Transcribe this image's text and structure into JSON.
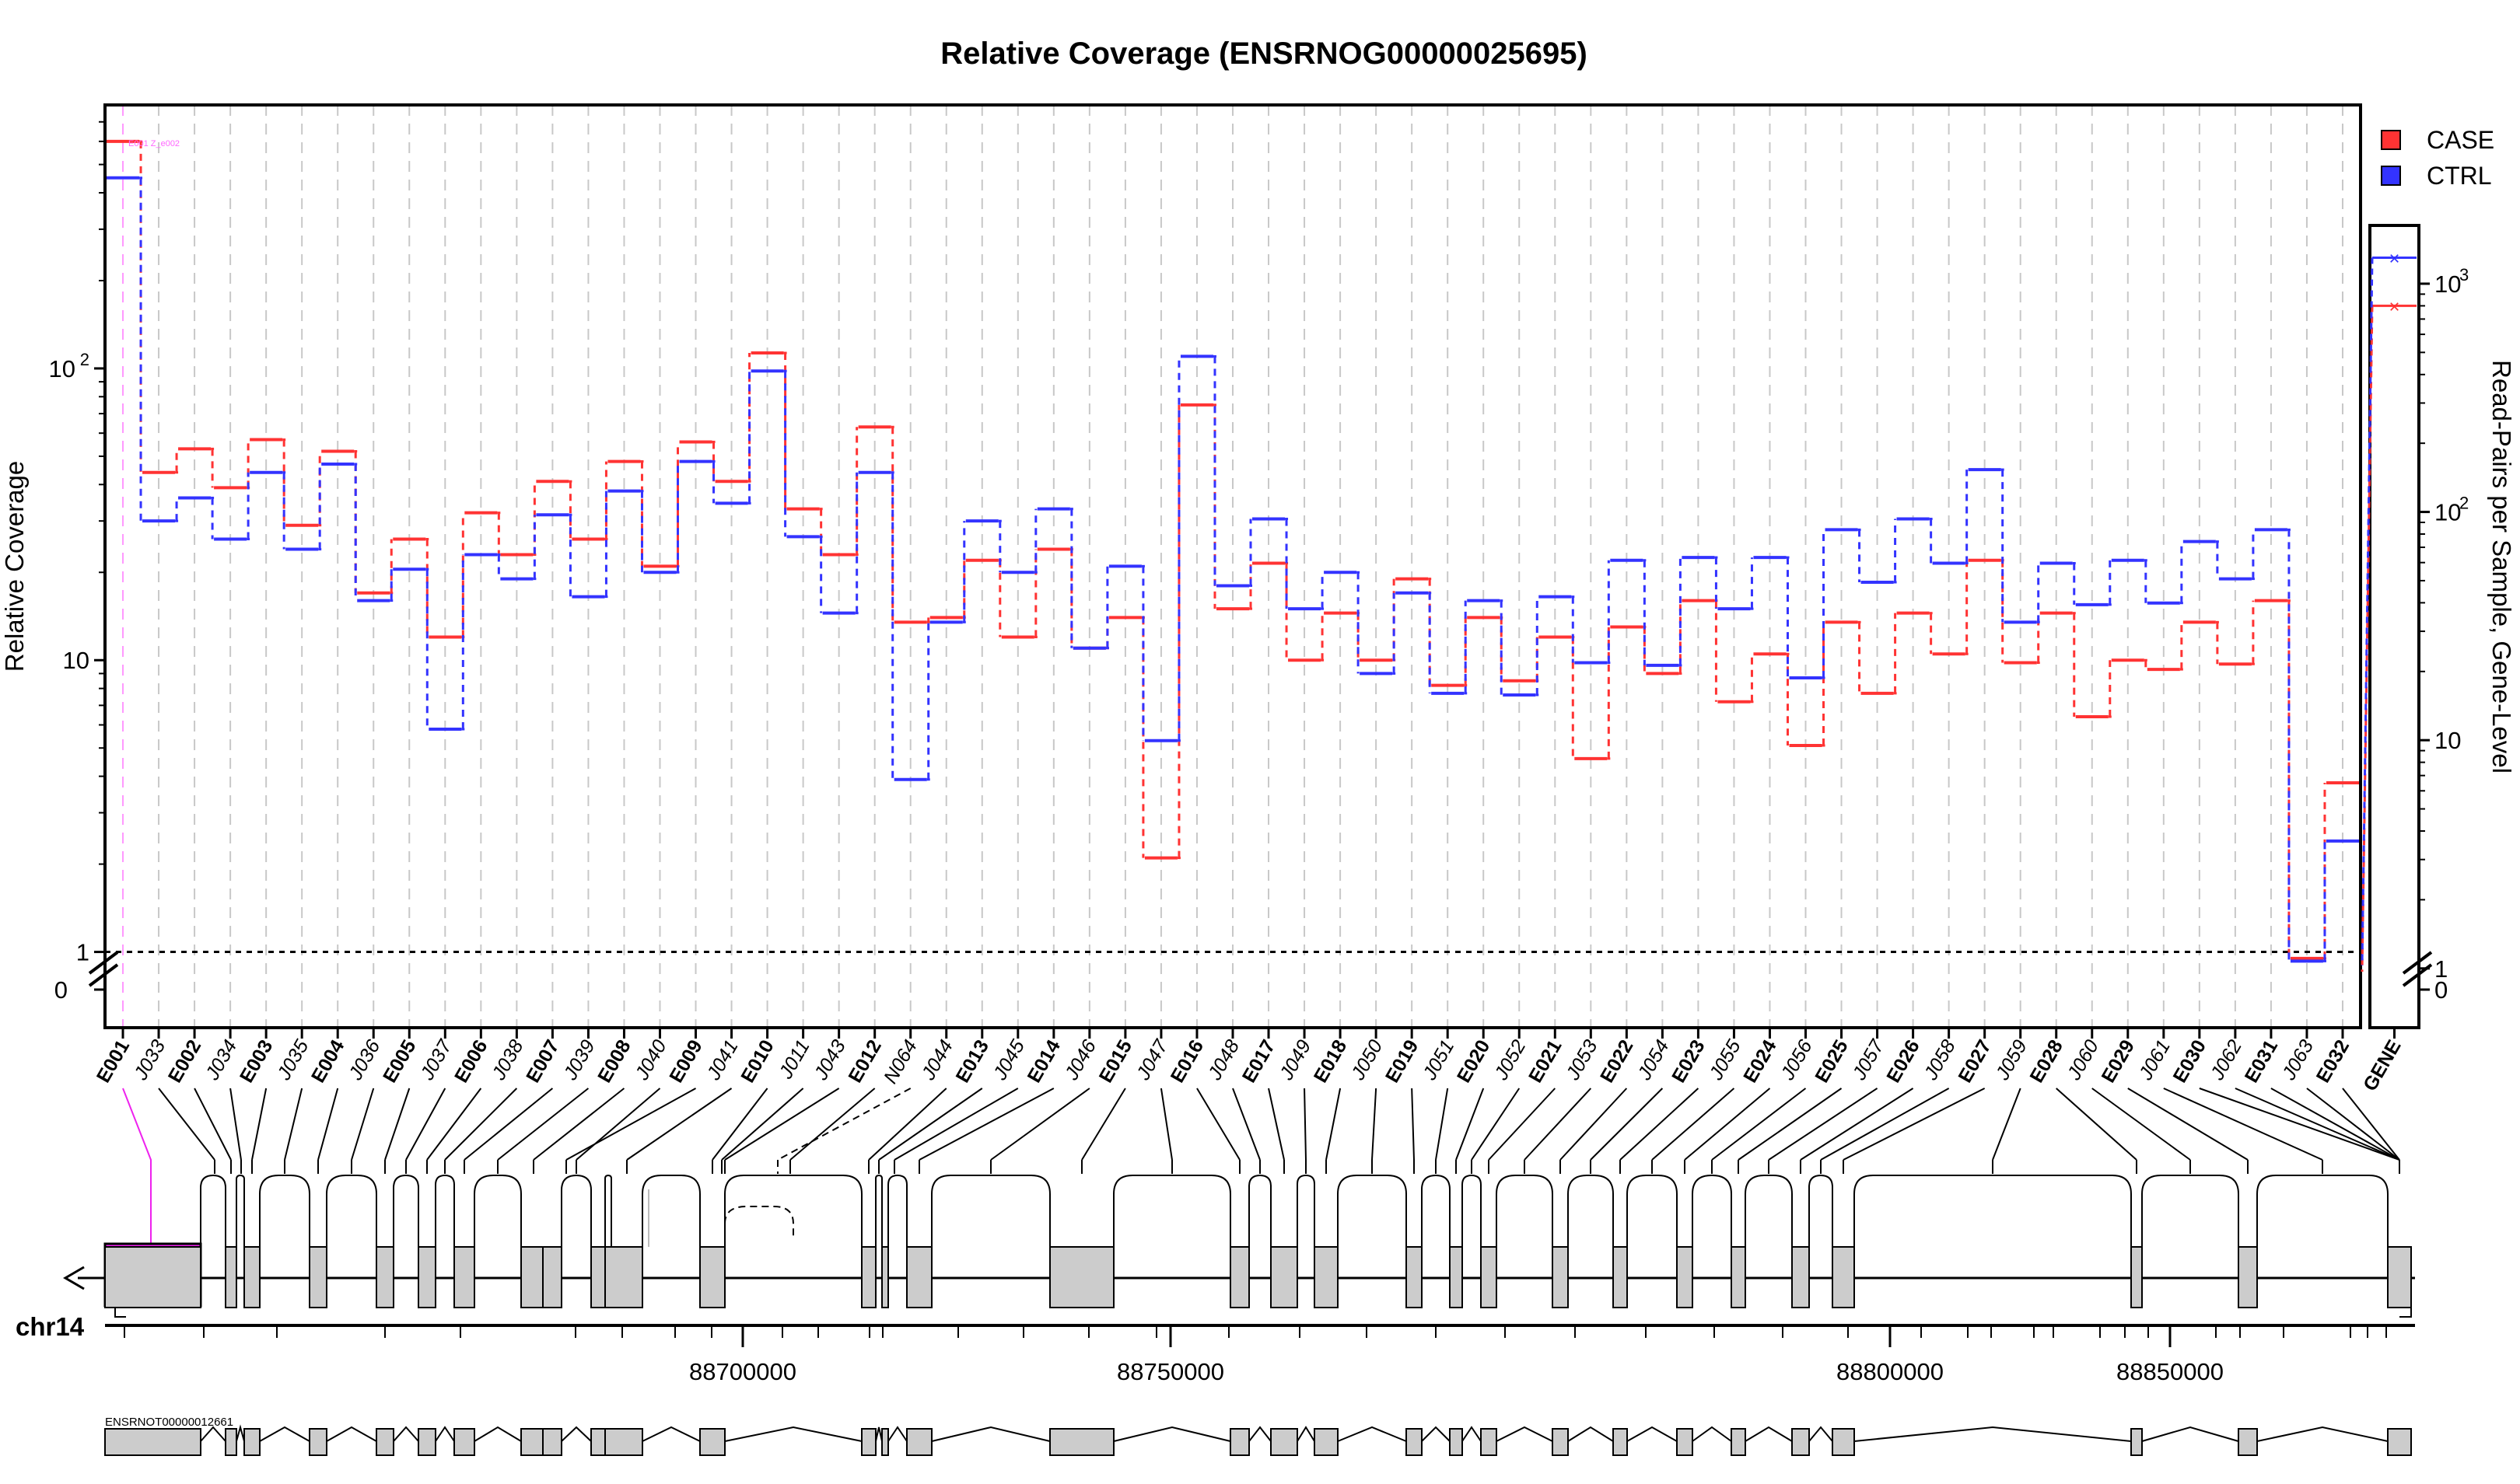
{
  "colors": {
    "case": "#ff3333",
    "ctrl": "#3333ff",
    "exon_fill": "#cccccc",
    "first_exon_fill": "#ee22ee",
    "grid": "#c8c8c8"
  },
  "chart_data": {
    "type": "line",
    "title": "Relative Coverage (ENSRNOG00000025695)",
    "ylabel": "Relative Coverage",
    "ylabel_right": "Read-Pairs per Sample, Gene-Level",
    "y_scale": "log",
    "ylim": [
      0.55,
      800
    ],
    "y_ticks": [
      {
        "value": 1,
        "label": "1"
      },
      {
        "value": 10,
        "label": "10"
      },
      {
        "value": 100,
        "label": "10",
        "sup": "2"
      }
    ],
    "y_zero_label": "0",
    "reference_line": 1,
    "grid": "vertical dashed",
    "legend_position": "top-right",
    "features": [
      "E001",
      "J033",
      "E002",
      "J034",
      "E003",
      "J035",
      "E004",
      "J036",
      "E005",
      "J037",
      "E006",
      "J038",
      "E007",
      "J039",
      "E008",
      "J040",
      "E009",
      "J041",
      "E010",
      "J011",
      "J043",
      "E012",
      "N064",
      "J044",
      "E013",
      "J045",
      "E014",
      "J046",
      "E015",
      "J047",
      "E016",
      "J048",
      "E017",
      "J049",
      "E018",
      "J050",
      "E019",
      "J051",
      "E020",
      "J052",
      "E021",
      "J053",
      "E022",
      "J054",
      "E023",
      "J055",
      "E024",
      "J056",
      "E025",
      "J057",
      "E026",
      "J058",
      "E027",
      "J059",
      "E028",
      "J060",
      "E029",
      "J061",
      "E030",
      "J062",
      "E031",
      "J063",
      "E032"
    ],
    "series": [
      {
        "name": "CASE",
        "values": [
          600,
          44,
          53,
          39,
          57,
          29,
          52,
          17,
          26,
          12,
          32,
          23,
          41,
          26,
          48,
          21,
          56,
          41,
          113,
          33,
          23,
          63,
          13.5,
          14,
          22,
          12,
          24,
          11,
          14,
          2.1,
          75,
          15,
          21.5,
          10,
          14.5,
          10,
          19,
          8.2,
          14,
          8.5,
          12,
          4.6,
          13,
          9,
          16,
          7.2,
          10.5,
          5.1,
          13.5,
          7.7,
          14.5,
          10.5,
          22,
          9.8,
          14.5,
          6.4,
          10,
          9.3,
          13.5,
          9.7,
          16,
          0.95,
          3.8
        ]
      },
      {
        "name": "CTRL",
        "values": [
          450,
          30,
          36,
          26,
          44,
          24,
          47,
          16,
          20.5,
          5.8,
          23,
          19,
          31.5,
          16.5,
          38,
          20,
          48,
          34.5,
          98,
          26.5,
          14.5,
          44,
          3.9,
          13.5,
          30,
          20,
          33,
          11,
          21,
          5.3,
          110,
          18,
          30.5,
          15,
          20,
          9,
          17,
          7.7,
          16,
          7.6,
          16.5,
          9.8,
          22,
          9.6,
          22.5,
          15,
          22.5,
          8.7,
          28,
          18.5,
          30.5,
          21.5,
          45,
          13.5,
          21.5,
          15.5,
          22,
          15.7,
          25.5,
          19,
          28,
          0.93,
          2.4
        ]
      }
    ],
    "gene_level": {
      "label": "GENE",
      "ylim": [
        0.55,
        1800
      ],
      "y_ticks": [
        {
          "value": 1,
          "label": "1"
        },
        {
          "value": 10,
          "label": "10"
        },
        {
          "value": 100,
          "label": "10",
          "sup": "2"
        },
        {
          "value": 1000,
          "label": "10",
          "sup": "3"
        }
      ],
      "y_zero_label": "0",
      "series": [
        {
          "name": "CASE",
          "value": 800
        },
        {
          "name": "CTRL",
          "value": 1300
        }
      ]
    },
    "genome_axis": {
      "chromosome": "chr14",
      "ticks": [
        {
          "value": 88700000,
          "label": "88700000"
        },
        {
          "value": 88750000,
          "label": "88750000"
        },
        {
          "value": 88800000,
          "label": "88800000"
        },
        {
          "value": 88850000,
          "label": "88850000"
        }
      ],
      "strand": "minus"
    },
    "transcript": {
      "label": "ENSRNOT00000012661"
    },
    "first_exon_label": "E001 Z_e002"
  }
}
